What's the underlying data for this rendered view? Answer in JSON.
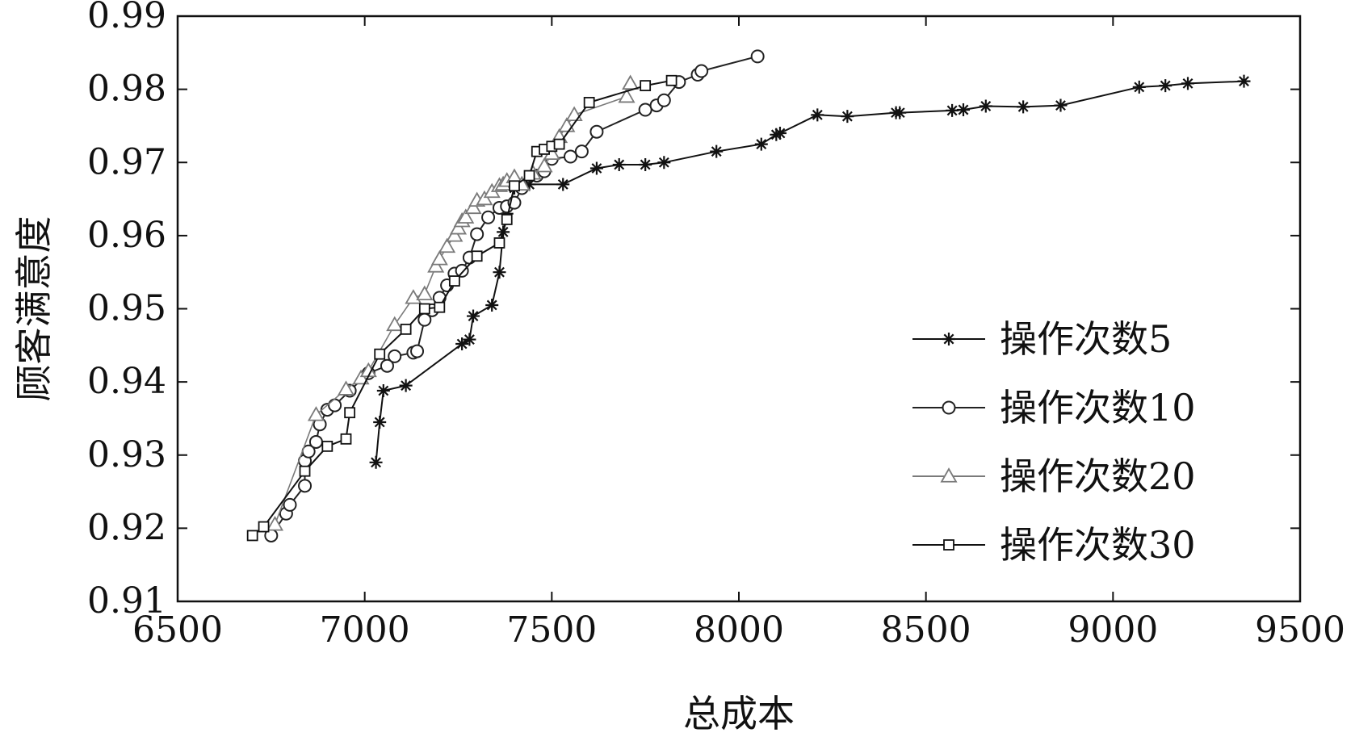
{
  "chart_data": {
    "type": "line",
    "title": "",
    "xlabel": "总成本",
    "ylabel": "顾客满意度",
    "xlim": [
      6500,
      9500
    ],
    "ylim": [
      0.91,
      0.99
    ],
    "xticks": [
      6500,
      7000,
      7500,
      8000,
      8500,
      9000,
      9500
    ],
    "xtick_labels": [
      "6500",
      "7000",
      "7500",
      "8000",
      "8500",
      "9000",
      "9500"
    ],
    "yticks": [
      0.91,
      0.92,
      0.93,
      0.94,
      0.95,
      0.96,
      0.97,
      0.98,
      0.99
    ],
    "ytick_labels": [
      "0.91",
      "0.92",
      "0.93",
      "0.94",
      "0.95",
      "0.96",
      "0.97",
      "0.98",
      "0.99"
    ],
    "grid": false,
    "legend_position": "right",
    "colors": {
      "s5": "#111111",
      "s10": "#222222",
      "s20": "#7a7a7a",
      "s30": "#111111"
    },
    "series": [
      {
        "name": "操作次数5",
        "marker": "star",
        "x": [
          7030,
          7040,
          7050,
          7110,
          7260,
          7280,
          7290,
          7340,
          7360,
          7370,
          7380,
          7400,
          7420,
          7440,
          7530,
          7620,
          7680,
          7750,
          7800,
          7940,
          8060,
          8100,
          8110,
          8210,
          8290,
          8420,
          8430,
          8570,
          8600,
          8660,
          8760,
          8860,
          9070,
          9140,
          9200,
          9350
        ],
        "y": [
          0.929,
          0.9345,
          0.9388,
          0.9395,
          0.9452,
          0.9458,
          0.949,
          0.9505,
          0.955,
          0.9605,
          0.963,
          0.9665,
          0.9668,
          0.967,
          0.967,
          0.9692,
          0.9697,
          0.9697,
          0.97,
          0.9715,
          0.9725,
          0.9738,
          0.974,
          0.9765,
          0.9763,
          0.9768,
          0.9768,
          0.9771,
          0.9772,
          0.9777,
          0.9776,
          0.9778,
          0.9803,
          0.9805,
          0.9808,
          0.9811
        ]
      },
      {
        "name": "操作次数10",
        "marker": "circle",
        "x": [
          6750,
          6790,
          6800,
          6840,
          6840,
          6850,
          6870,
          6880,
          6900,
          6920,
          6960,
          7010,
          7060,
          7080,
          7130,
          7140,
          7160,
          7180,
          7200,
          7220,
          7240,
          7260,
          7280,
          7300,
          7330,
          7360,
          7380,
          7400,
          7420,
          7460,
          7480,
          7500,
          7550,
          7580,
          7620,
          7750,
          7780,
          7800,
          7840,
          7890,
          7900,
          8050
        ],
        "y": [
          0.919,
          0.922,
          0.9232,
          0.9258,
          0.9292,
          0.9305,
          0.9318,
          0.9342,
          0.9362,
          0.9368,
          0.9388,
          0.9412,
          0.9422,
          0.9435,
          0.944,
          0.9442,
          0.9485,
          0.9498,
          0.9515,
          0.9532,
          0.9548,
          0.9552,
          0.957,
          0.9602,
          0.9625,
          0.9638,
          0.964,
          0.9645,
          0.9665,
          0.9682,
          0.9688,
          0.9705,
          0.9708,
          0.9715,
          0.9742,
          0.9772,
          0.9778,
          0.9785,
          0.981,
          0.982,
          0.9825,
          0.9845
        ]
      },
      {
        "name": "操作次数20",
        "marker": "triangle",
        "x": [
          6760,
          6870,
          6950,
          6990,
          7010,
          7080,
          7130,
          7160,
          7190,
          7200,
          7220,
          7240,
          7250,
          7260,
          7270,
          7290,
          7300,
          7320,
          7340,
          7360,
          7370,
          7380,
          7400,
          7420,
          7450,
          7480,
          7500,
          7520,
          7540,
          7560,
          7700,
          7710
        ],
        "y": [
          0.9205,
          0.9355,
          0.939,
          0.9405,
          0.9415,
          0.9478,
          0.9515,
          0.952,
          0.9558,
          0.9568,
          0.9585,
          0.96,
          0.961,
          0.962,
          0.9625,
          0.9638,
          0.9648,
          0.965,
          0.966,
          0.9668,
          0.967,
          0.9675,
          0.968,
          0.967,
          0.9685,
          0.9695,
          0.9712,
          0.9735,
          0.975,
          0.9765,
          0.979,
          0.9808
        ]
      },
      {
        "name": "操作次数30",
        "marker": "square",
        "x": [
          6700,
          6730,
          6840,
          6900,
          6950,
          6960,
          7040,
          7110,
          7160,
          7200,
          7240,
          7300,
          7360,
          7380,
          7400,
          7440,
          7460,
          7480,
          7500,
          7520,
          7600,
          7750,
          7820
        ],
        "y": [
          0.919,
          0.9202,
          0.9278,
          0.9312,
          0.9322,
          0.9358,
          0.9438,
          0.9472,
          0.95,
          0.9502,
          0.9538,
          0.9572,
          0.959,
          0.9622,
          0.9668,
          0.9682,
          0.9715,
          0.9718,
          0.9722,
          0.9725,
          0.9782,
          0.9805,
          0.9812
        ]
      }
    ]
  }
}
